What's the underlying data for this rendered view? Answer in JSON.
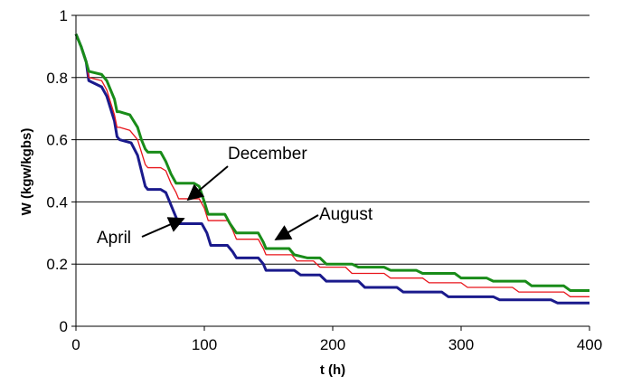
{
  "chart_data": {
    "type": "line",
    "xlabel": "t (h)",
    "ylabel": "W  (kgw/kgbs)",
    "xlim": [
      0,
      400
    ],
    "ylim": [
      0,
      1
    ],
    "x_ticks": [
      "0",
      "100",
      "200",
      "300",
      "400"
    ],
    "y_ticks": [
      "0",
      "0.2",
      "0.4",
      "0.6",
      "0.8",
      "1"
    ],
    "grid": "horizontal",
    "series": [
      {
        "label_ref": "April",
        "color": "#1a1a8c",
        "points": [
          [
            0,
            0.94
          ],
          [
            4,
            0.9
          ],
          [
            8,
            0.85
          ],
          [
            10,
            0.79
          ],
          [
            20,
            0.77
          ],
          [
            24,
            0.74
          ],
          [
            27,
            0.7
          ],
          [
            30,
            0.66
          ],
          [
            32,
            0.61
          ],
          [
            34,
            0.6
          ],
          [
            43,
            0.59
          ],
          [
            48,
            0.55
          ],
          [
            51,
            0.5
          ],
          [
            54,
            0.45
          ],
          [
            56,
            0.44
          ],
          [
            66,
            0.44
          ],
          [
            70,
            0.43
          ],
          [
            74,
            0.39
          ],
          [
            78,
            0.35
          ],
          [
            80,
            0.33
          ],
          [
            98,
            0.33
          ],
          [
            102,
            0.3
          ],
          [
            105,
            0.26
          ],
          [
            118,
            0.26
          ],
          [
            122,
            0.24
          ],
          [
            125,
            0.22
          ],
          [
            142,
            0.22
          ],
          [
            146,
            0.2
          ],
          [
            148,
            0.18
          ],
          [
            170,
            0.18
          ],
          [
            175,
            0.165
          ],
          [
            190,
            0.165
          ],
          [
            195,
            0.145
          ],
          [
            220,
            0.145
          ],
          [
            225,
            0.125
          ],
          [
            250,
            0.125
          ],
          [
            255,
            0.11
          ],
          [
            285,
            0.11
          ],
          [
            290,
            0.095
          ],
          [
            325,
            0.095
          ],
          [
            330,
            0.085
          ],
          [
            370,
            0.085
          ],
          [
            375,
            0.075
          ],
          [
            400,
            0.075
          ]
        ]
      },
      {
        "label_ref": "December",
        "color": "#e8141a",
        "points": [
          [
            0,
            0.94
          ],
          [
            4,
            0.9
          ],
          [
            8,
            0.85
          ],
          [
            10,
            0.8
          ],
          [
            20,
            0.79
          ],
          [
            24,
            0.76
          ],
          [
            27,
            0.72
          ],
          [
            30,
            0.68
          ],
          [
            32,
            0.64
          ],
          [
            34,
            0.64
          ],
          [
            42,
            0.63
          ],
          [
            48,
            0.6
          ],
          [
            51,
            0.56
          ],
          [
            54,
            0.52
          ],
          [
            56,
            0.51
          ],
          [
            66,
            0.51
          ],
          [
            70,
            0.5
          ],
          [
            74,
            0.46
          ],
          [
            78,
            0.43
          ],
          [
            80,
            0.41
          ],
          [
            96,
            0.41
          ],
          [
            100,
            0.38
          ],
          [
            103,
            0.34
          ],
          [
            118,
            0.34
          ],
          [
            122,
            0.31
          ],
          [
            125,
            0.28
          ],
          [
            142,
            0.28
          ],
          [
            146,
            0.25
          ],
          [
            148,
            0.23
          ],
          [
            168,
            0.23
          ],
          [
            172,
            0.21
          ],
          [
            185,
            0.21
          ],
          [
            190,
            0.19
          ],
          [
            210,
            0.19
          ],
          [
            215,
            0.17
          ],
          [
            240,
            0.17
          ],
          [
            245,
            0.155
          ],
          [
            270,
            0.155
          ],
          [
            275,
            0.14
          ],
          [
            300,
            0.14
          ],
          [
            305,
            0.125
          ],
          [
            340,
            0.125
          ],
          [
            345,
            0.11
          ],
          [
            380,
            0.11
          ],
          [
            385,
            0.095
          ],
          [
            400,
            0.095
          ]
        ]
      },
      {
        "label_ref": "August",
        "color": "#198c19",
        "points": [
          [
            0,
            0.94
          ],
          [
            4,
            0.9
          ],
          [
            8,
            0.85
          ],
          [
            10,
            0.82
          ],
          [
            20,
            0.81
          ],
          [
            24,
            0.79
          ],
          [
            27,
            0.76
          ],
          [
            30,
            0.73
          ],
          [
            32,
            0.69
          ],
          [
            34,
            0.69
          ],
          [
            42,
            0.68
          ],
          [
            48,
            0.64
          ],
          [
            51,
            0.6
          ],
          [
            54,
            0.57
          ],
          [
            56,
            0.56
          ],
          [
            66,
            0.56
          ],
          [
            70,
            0.53
          ],
          [
            74,
            0.49
          ],
          [
            78,
            0.46
          ],
          [
            80,
            0.46
          ],
          [
            92,
            0.46
          ],
          [
            96,
            0.45
          ],
          [
            100,
            0.4
          ],
          [
            103,
            0.36
          ],
          [
            116,
            0.36
          ],
          [
            120,
            0.33
          ],
          [
            125,
            0.3
          ],
          [
            142,
            0.3
          ],
          [
            146,
            0.27
          ],
          [
            148,
            0.25
          ],
          [
            166,
            0.25
          ],
          [
            170,
            0.23
          ],
          [
            180,
            0.22
          ],
          [
            190,
            0.22
          ],
          [
            195,
            0.2
          ],
          [
            215,
            0.2
          ],
          [
            220,
            0.19
          ],
          [
            240,
            0.19
          ],
          [
            245,
            0.18
          ],
          [
            265,
            0.18
          ],
          [
            270,
            0.17
          ],
          [
            295,
            0.17
          ],
          [
            300,
            0.155
          ],
          [
            320,
            0.155
          ],
          [
            325,
            0.145
          ],
          [
            350,
            0.145
          ],
          [
            355,
            0.13
          ],
          [
            380,
            0.13
          ],
          [
            385,
            0.115
          ],
          [
            400,
            0.115
          ]
        ]
      }
    ],
    "annotations": [
      {
        "text": "December",
        "points_to": "December"
      },
      {
        "text": "August",
        "points_to": "August"
      },
      {
        "text": "April",
        "points_to": "April"
      }
    ]
  }
}
